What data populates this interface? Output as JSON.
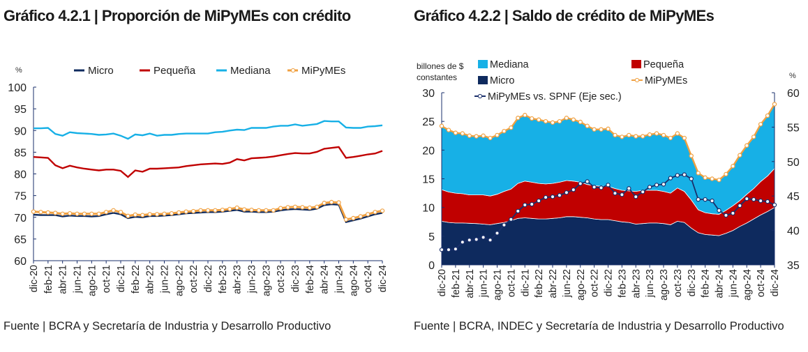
{
  "titles": {
    "left": "Gráfico 4.2.1 | Proporción de MiPyMEs con crédito",
    "right": "Gráfico 4.2.2 | Saldo de crédito de MiPyMEs"
  },
  "sources": {
    "left": "Fuente | BCRA y Secretaría de Industria y Desarrollo Productivo",
    "right": "Fuente | BCRA, INDEC y Secretaría de Industria y Desarrollo Productivo"
  },
  "colors": {
    "micro": "#0e2a5e",
    "pequena": "#c00000",
    "mediana": "#17b0e6",
    "mipymes": "#f0a040",
    "spnf": "#1a2f6b"
  },
  "chart_data": [
    {
      "type": "line",
      "ylabel": "%",
      "ylim": [
        60,
        100
      ],
      "yticks": [
        "60",
        "65",
        "70",
        "75",
        "80",
        "85",
        "90",
        "95",
        "100"
      ],
      "xticks": [
        "dic-20",
        "feb-21",
        "abr-21",
        "jun-21",
        "ago-21",
        "oct-21",
        "dic-21",
        "feb-22",
        "abr-22",
        "jun-22",
        "ago-22",
        "oct-22",
        "dic-22",
        "feb-23",
        "abr-23",
        "jun-23",
        "ago-23",
        "oct-23",
        "dic-23",
        "feb-24",
        "abr-24",
        "jun-24",
        "ago-24",
        "oct-24",
        "dic-24"
      ],
      "legend_position": "top",
      "series": [
        {
          "name": "Micro",
          "color": "#0e2a5e",
          "values": [
            70.6,
            70.5,
            70.5,
            70.5,
            70.2,
            70.4,
            70.3,
            70.3,
            70.2,
            70.3,
            70.7,
            71.0,
            70.7,
            69.8,
            70.1,
            70.0,
            70.3,
            70.3,
            70.4,
            70.5,
            70.7,
            70.9,
            71.0,
            71.1,
            71.2,
            71.2,
            71.3,
            71.5,
            71.7,
            71.3,
            71.3,
            71.2,
            71.2,
            71.3,
            71.6,
            71.8,
            71.9,
            71.8,
            71.7,
            72.0,
            72.8,
            73.0,
            72.9,
            68.9,
            69.3,
            69.7,
            70.2,
            70.7,
            71.0
          ]
        },
        {
          "name": "Pequeña",
          "color": "#c00000",
          "values": [
            83.9,
            83.8,
            83.7,
            82.0,
            81.3,
            81.9,
            81.5,
            81.2,
            81.0,
            80.8,
            81.0,
            81.0,
            80.7,
            79.3,
            80.8,
            80.5,
            81.2,
            81.2,
            81.3,
            81.4,
            81.5,
            81.8,
            82.0,
            82.2,
            82.3,
            82.4,
            82.3,
            82.6,
            83.4,
            83.1,
            83.6,
            83.7,
            83.8,
            84.0,
            84.3,
            84.6,
            84.8,
            84.7,
            84.7,
            85.1,
            85.8,
            86.0,
            86.2,
            83.7,
            83.9,
            84.2,
            84.5,
            84.7,
            85.3
          ]
        },
        {
          "name": "Mediana",
          "color": "#17b0e6",
          "values": [
            90.5,
            90.5,
            90.6,
            89.2,
            88.8,
            89.6,
            89.4,
            89.3,
            89.2,
            89.0,
            89.1,
            89.3,
            88.8,
            88.1,
            89.1,
            88.9,
            89.3,
            88.8,
            89.0,
            89.0,
            89.2,
            89.3,
            89.3,
            89.3,
            89.3,
            89.6,
            89.7,
            90.0,
            90.2,
            90.1,
            90.6,
            90.6,
            90.6,
            90.9,
            91.1,
            91.1,
            91.4,
            91.1,
            91.3,
            91.5,
            92.2,
            92.1,
            92.1,
            90.7,
            90.6,
            90.6,
            90.9,
            91.0,
            91.2
          ]
        },
        {
          "name": "MiPyMEs",
          "color": "#f0a040",
          "markers": true,
          "values": [
            71.3,
            71.2,
            71.1,
            71.0,
            70.8,
            70.9,
            70.8,
            70.8,
            70.8,
            70.8,
            71.2,
            71.6,
            71.2,
            70.3,
            70.6,
            70.5,
            70.7,
            70.7,
            70.8,
            70.9,
            71.1,
            71.3,
            71.4,
            71.6,
            71.6,
            71.6,
            71.7,
            71.9,
            72.2,
            71.8,
            71.7,
            71.6,
            71.6,
            71.6,
            72.1,
            72.3,
            72.4,
            72.3,
            72.2,
            72.4,
            73.3,
            73.5,
            73.4,
            69.5,
            69.8,
            70.2,
            70.7,
            71.2,
            71.5
          ]
        }
      ]
    },
    {
      "type": "area",
      "stacked": true,
      "ylabel": "billones de $ constantes",
      "ylabel_lines": [
        "billones de $",
        "constantes"
      ],
      "ylim": [
        0,
        30
      ],
      "yticks": [
        "0",
        "5",
        "10",
        "15",
        "20",
        "25",
        "30"
      ],
      "y2label": "%",
      "y2lim": [
        35,
        60
      ],
      "y2ticks": [
        "35",
        "40",
        "45",
        "50",
        "55",
        "60"
      ],
      "xticks": [
        "dic-20",
        "feb-21",
        "abr-21",
        "jun-21",
        "ago-21",
        "oct-21",
        "dic-21",
        "feb-22",
        "abr-22",
        "jun-22",
        "ago-22",
        "oct-22",
        "dic-22",
        "feb-23",
        "abr-23",
        "jun-23",
        "ago-23",
        "oct-23",
        "dic-23",
        "feb-24",
        "abr-24",
        "jun-24",
        "ago-24",
        "oct-24",
        "dic-24"
      ],
      "legend_position": "top",
      "series": [
        {
          "name": "Micro",
          "color": "#0e2a5e",
          "values": [
            7.6,
            7.4,
            7.3,
            7.3,
            7.25,
            7.2,
            7.1,
            7.0,
            7.2,
            7.4,
            7.7,
            8.1,
            8.2,
            8.1,
            8.0,
            8.0,
            8.1,
            8.2,
            8.4,
            8.4,
            8.3,
            8.2,
            8.0,
            7.9,
            7.9,
            7.7,
            7.5,
            7.4,
            7.1,
            7.2,
            7.3,
            7.3,
            7.2,
            7.0,
            7.6,
            7.4,
            6.4,
            5.6,
            5.3,
            5.2,
            5.1,
            5.5,
            6.0,
            6.7,
            7.3,
            8.0,
            8.7,
            9.3,
            10.0
          ]
        },
        {
          "name": "Pequeña",
          "color": "#c00000",
          "values": [
            5.5,
            5.3,
            5.2,
            5.1,
            4.95,
            5.0,
            5.1,
            5.0,
            5.1,
            5.4,
            5.5,
            6.1,
            6.4,
            6.3,
            6.2,
            6.1,
            6.1,
            6.2,
            6.3,
            6.2,
            6.1,
            5.8,
            5.8,
            5.8,
            5.8,
            5.6,
            5.5,
            5.5,
            5.7,
            5.8,
            5.7,
            5.7,
            5.6,
            5.5,
            5.8,
            5.4,
            4.9,
            4.0,
            3.8,
            3.7,
            3.7,
            4.0,
            4.3,
            4.5,
            5.0,
            5.3,
            5.8,
            6.2,
            6.8
          ]
        },
        {
          "name": "Mediana",
          "color": "#17b0e6",
          "values": [
            11.1,
            10.8,
            10.5,
            10.5,
            10.3,
            10.2,
            10.3,
            10.1,
            10.3,
            10.5,
            10.7,
            11.4,
            11.5,
            11.1,
            11.1,
            10.9,
            10.6,
            10.6,
            10.9,
            10.7,
            10.5,
            10.2,
            9.8,
            9.9,
            10.0,
            9.3,
            9.3,
            9.7,
            9.6,
            9.4,
            9.7,
            9.9,
            9.8,
            9.6,
            9.5,
            9.3,
            7.7,
            6.4,
            6.1,
            6.1,
            6.0,
            6.3,
            6.9,
            7.9,
            8.5,
            9.0,
            10.0,
            10.5,
            11.2
          ]
        },
        {
          "name": "MiPyMEs",
          "color": "#f0a040",
          "type": "line",
          "markers": true,
          "values": [
            24.2,
            23.5,
            23.0,
            22.9,
            22.5,
            22.4,
            22.5,
            22.1,
            22.6,
            23.3,
            23.9,
            25.6,
            26.1,
            25.5,
            25.3,
            25.0,
            24.8,
            25.0,
            25.6,
            25.3,
            24.9,
            24.2,
            23.6,
            23.6,
            23.7,
            22.6,
            22.3,
            22.6,
            22.4,
            22.4,
            22.7,
            22.9,
            22.6,
            22.1,
            22.9,
            22.1,
            19.0,
            16.0,
            15.2,
            15.0,
            14.8,
            15.8,
            17.2,
            19.1,
            20.8,
            22.3,
            24.5,
            26.0,
            28.0
          ]
        },
        {
          "name": "MiPyMEs vs. SPNF (Eje sec.)",
          "color": "#1a2f6b",
          "type": "line",
          "axis": "secondary",
          "markers": true,
          "values": [
            37.2,
            37.2,
            37.3,
            38.3,
            38.6,
            38.7,
            39.0,
            38.6,
            39.6,
            40.8,
            41.6,
            42.8,
            43.7,
            43.8,
            44.3,
            44.8,
            44.9,
            45.1,
            45.5,
            45.9,
            46.8,
            47.1,
            46.3,
            46.2,
            46.6,
            45.4,
            45.2,
            46.1,
            44.9,
            45.6,
            46.3,
            46.6,
            46.7,
            47.6,
            48.0,
            48.1,
            47.5,
            44.5,
            44.5,
            44.3,
            42.9,
            42.2,
            42.5,
            43.6,
            44.6,
            44.5,
            44.3,
            44.2,
            43.7
          ]
        }
      ]
    }
  ]
}
